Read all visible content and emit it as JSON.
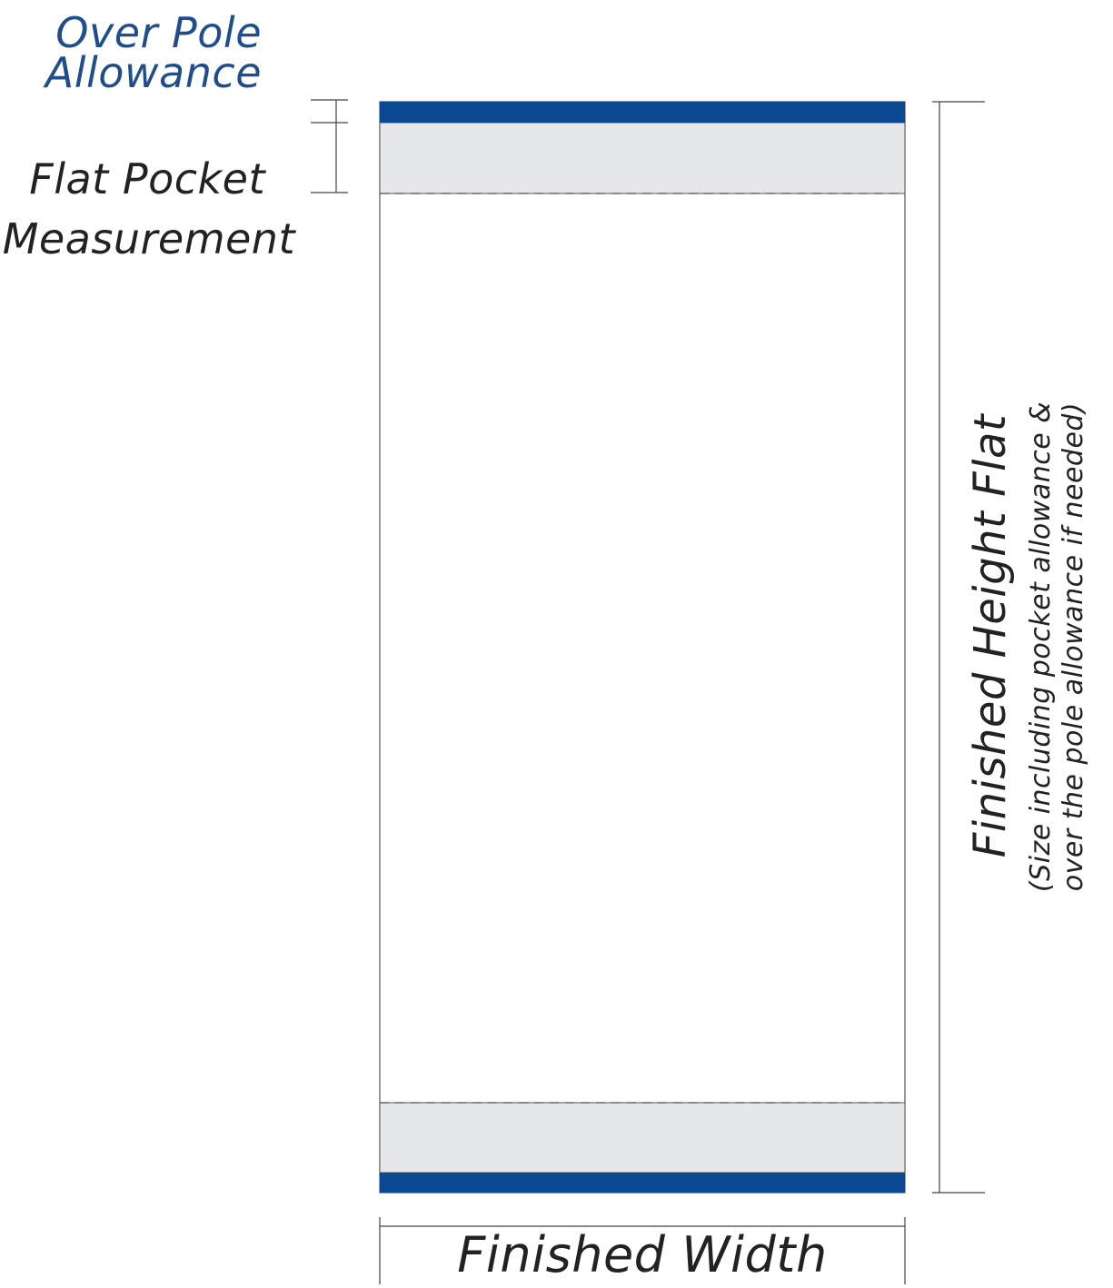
{
  "labels": {
    "over_pole_line1": "Over Pole",
    "over_pole_line2": "Allowance",
    "flat_pocket_line1": "Flat Pocket",
    "flat_pocket_line2": "Measurement",
    "finished_width": "Finished Width",
    "finished_height": "Finished Height Flat",
    "note_line1": "(Size including pocket allowance &",
    "note_line2": "over the pole allowance if needed)"
  },
  "colors": {
    "pole_band": "#0b4a93",
    "pocket_fill": "#e6e7e9",
    "outline": "#555555",
    "dashed": "#666666",
    "accent_text": "#1f4e8c",
    "text": "#222222"
  }
}
